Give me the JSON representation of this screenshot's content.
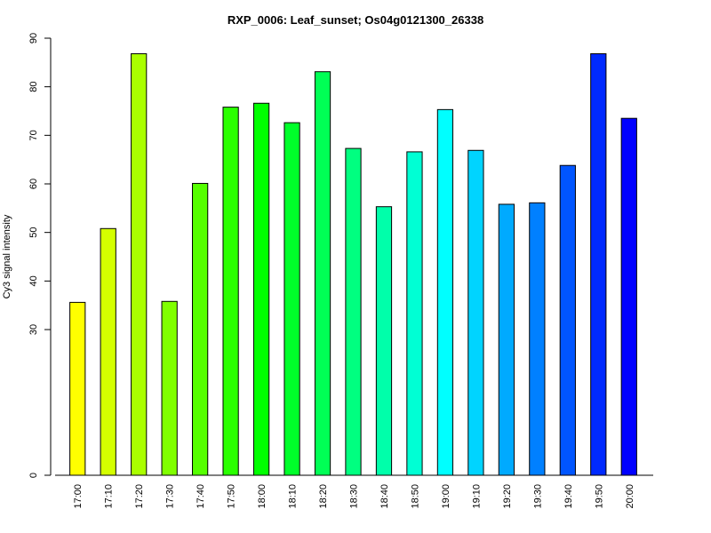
{
  "chart_data": {
    "type": "bar",
    "title": "RXP_0006: Leaf_sunset; Os04g0121300_26338",
    "xlabel": "",
    "ylabel": "Cy3 signal intensity",
    "yticks": [
      0,
      30,
      40,
      50,
      60,
      70,
      80,
      90
    ],
    "categories": [
      "17:00",
      "17:10",
      "17:20",
      "17:30",
      "17:40",
      "17:50",
      "18:00",
      "18:10",
      "18:20",
      "18:30",
      "18:40",
      "18:50",
      "19:00",
      "19:10",
      "19:20",
      "19:30",
      "19:40",
      "19:50",
      "20:00"
    ],
    "values": [
      35.6,
      50.8,
      86.8,
      35.8,
      60.1,
      75.8,
      76.6,
      72.6,
      83.1,
      67.3,
      55.3,
      66.6,
      75.3,
      66.9,
      55.8,
      56.1,
      63.8,
      86.8,
      73.5
    ],
    "colors": [
      "#FFFF00",
      "#D4FF00",
      "#AAFF00",
      "#80FF00",
      "#55FF00",
      "#2AFF00",
      "#00FF00",
      "#00FF2A",
      "#00FF55",
      "#00FF80",
      "#00FFAA",
      "#00FFD4",
      "#00FFFF",
      "#00D4FF",
      "#00AAFF",
      "#0080FF",
      "#0055FF",
      "#002AFF",
      "#0000FF"
    ]
  }
}
